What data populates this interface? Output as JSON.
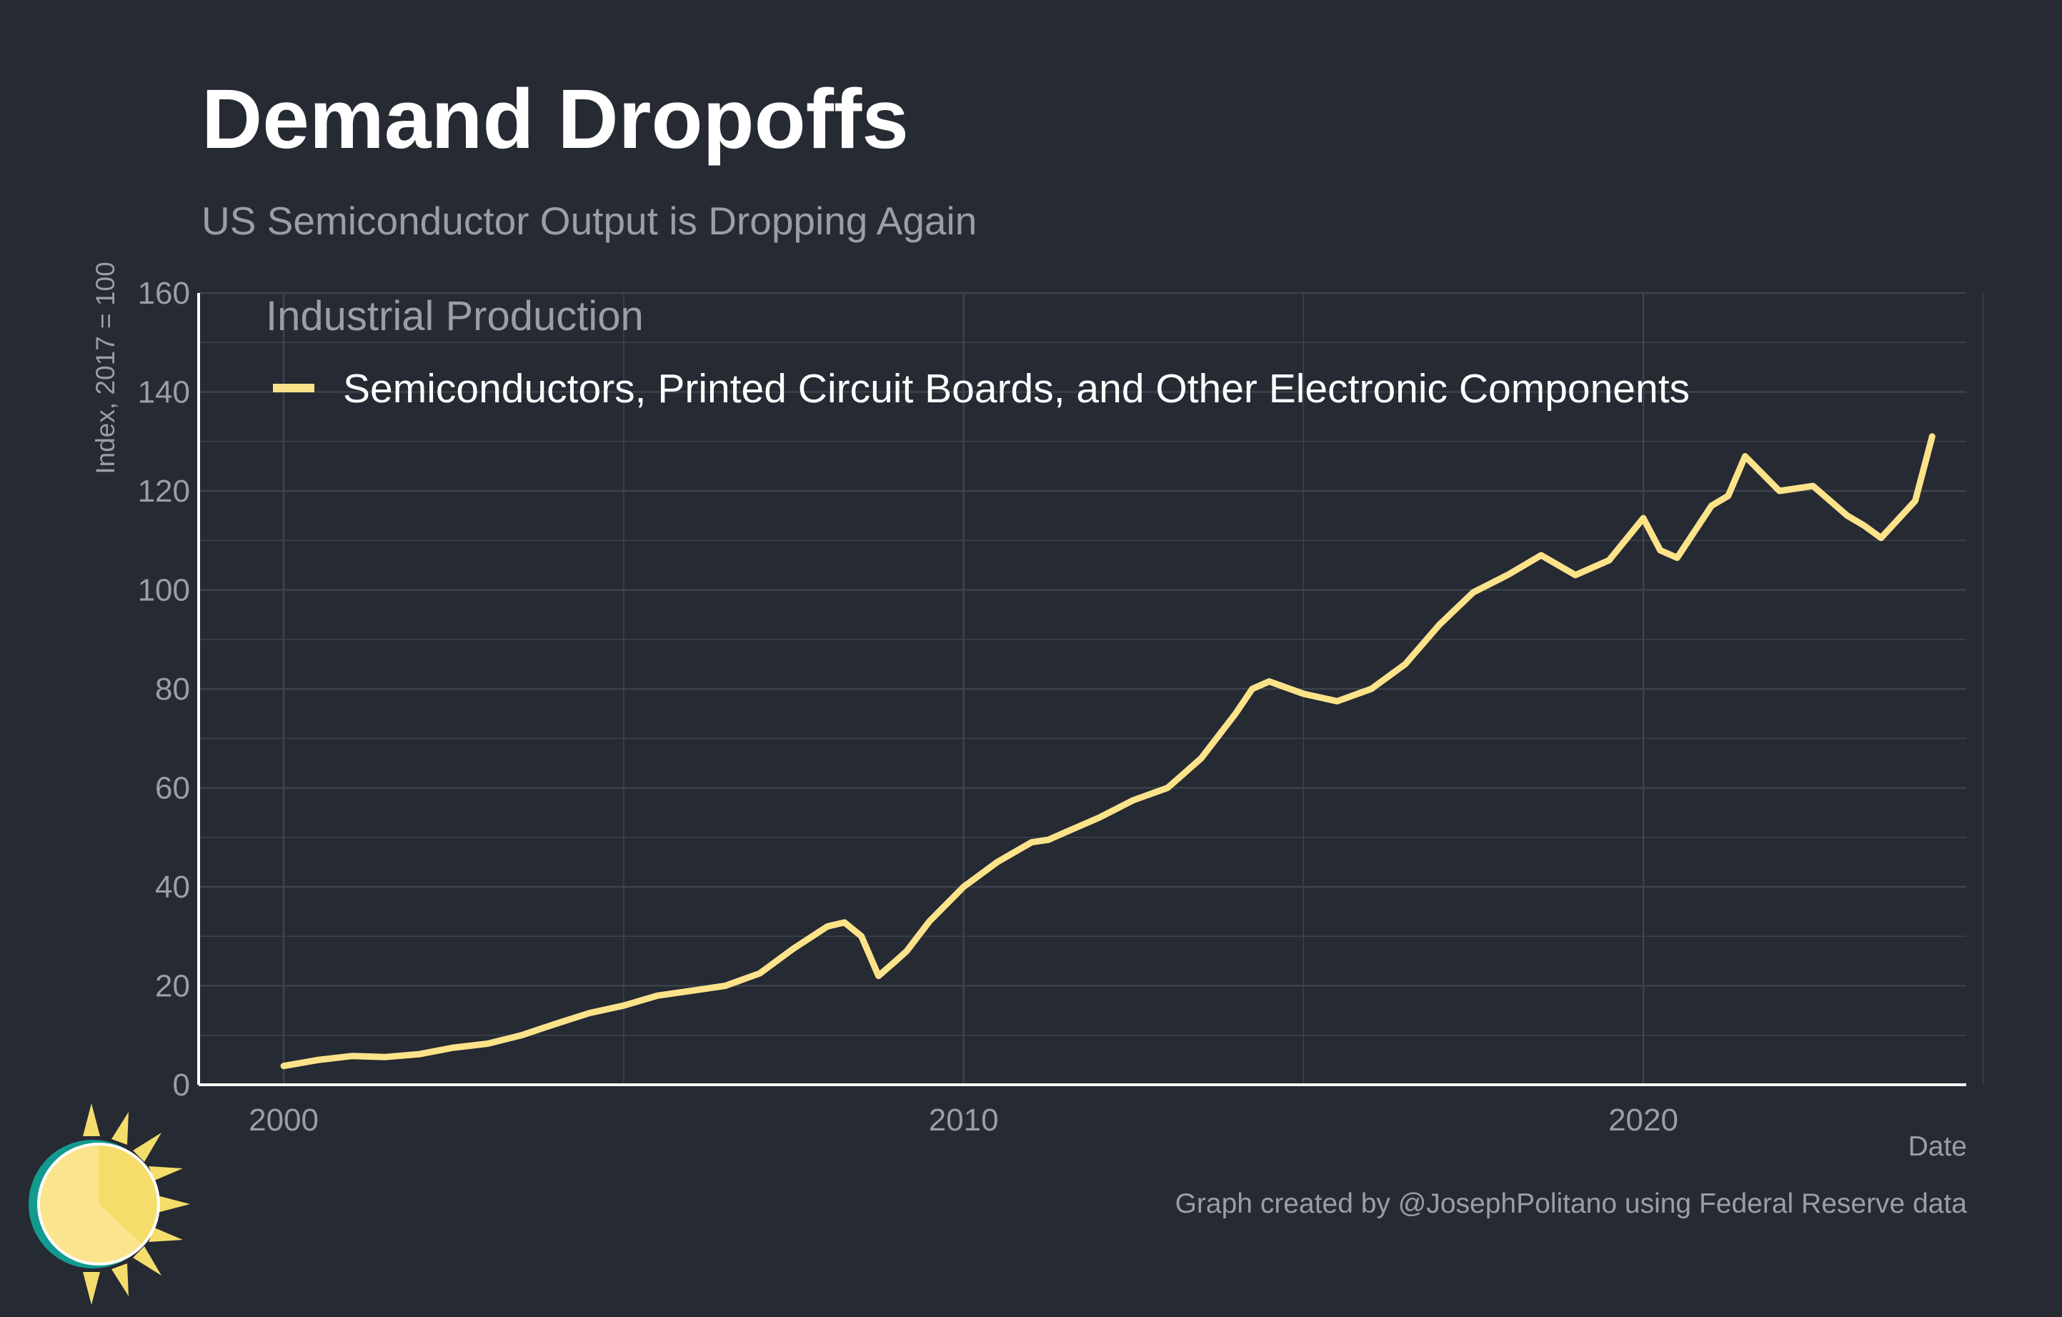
{
  "header": {
    "title": "Demand Dropoffs",
    "subtitle": "US Semiconductor Output is Dropping Again"
  },
  "footer": {
    "caption": "Graph created by @JosephPolitano using Federal Reserve data"
  },
  "colors": {
    "background": "#252a33",
    "line": "#fce38a",
    "grid": "#3d424b",
    "axis": "#ffffff",
    "muted_text": "#9a9ea6"
  },
  "chart_data": {
    "type": "line",
    "title": "Demand Dropoffs",
    "subtitle": "US Semiconductor Output is Dropping Again",
    "xlabel": "Date",
    "ylabel": "Index, 2017 = 100",
    "legend_title": "Industrial Production",
    "legend_position": "top-left",
    "grid": true,
    "xlim": [
      "1998-10-01",
      "2024-10-01"
    ],
    "ylim": [
      0,
      160
    ],
    "x_ticks": [
      "2000",
      "2010",
      "2020"
    ],
    "y_ticks": [
      0,
      20,
      40,
      60,
      80,
      100,
      120,
      140,
      160
    ],
    "series": [
      {
        "name": "Semiconductors, Printed Circuit Boards, and Other Electronic Components",
        "color": "#fce38a",
        "x": [
          "2000-01",
          "2000-07",
          "2001-01",
          "2001-07",
          "2002-01",
          "2002-07",
          "2003-01",
          "2003-07",
          "2004-01",
          "2004-07",
          "2005-01",
          "2005-07",
          "2006-01",
          "2006-07",
          "2007-01",
          "2007-07",
          "2008-01",
          "2008-04",
          "2008-07",
          "2008-10",
          "2009-01",
          "2009-03",
          "2009-07",
          "2010-01",
          "2010-07",
          "2011-01",
          "2011-04",
          "2011-07",
          "2012-01",
          "2012-07",
          "2013-01",
          "2013-07",
          "2014-01",
          "2014-04",
          "2014-07",
          "2015-01",
          "2015-07",
          "2016-01",
          "2016-07",
          "2017-01",
          "2017-07",
          "2018-01",
          "2018-07",
          "2019-01",
          "2019-07",
          "2020-01",
          "2020-04",
          "2020-07",
          "2021-01",
          "2021-04",
          "2021-07",
          "2022-01",
          "2022-07",
          "2023-01",
          "2023-04",
          "2023-07",
          "2024-01",
          "2024-04"
        ],
        "y": [
          3.8,
          5,
          5.8,
          5.6,
          6.2,
          7.5,
          8.3,
          10,
          12.3,
          14.5,
          16,
          18,
          19,
          20,
          22.5,
          27.5,
          32,
          32.8,
          30,
          22,
          25,
          27,
          33,
          40,
          45,
          49,
          49.5,
          51,
          54,
          57.5,
          60,
          66,
          75,
          80,
          81.5,
          79,
          77.5,
          80,
          85,
          93,
          99.5,
          103,
          107,
          103,
          106,
          114.5,
          108,
          106.5,
          117,
          119,
          127,
          120,
          121,
          115,
          113,
          110.5,
          118,
          131
        ]
      }
    ]
  }
}
